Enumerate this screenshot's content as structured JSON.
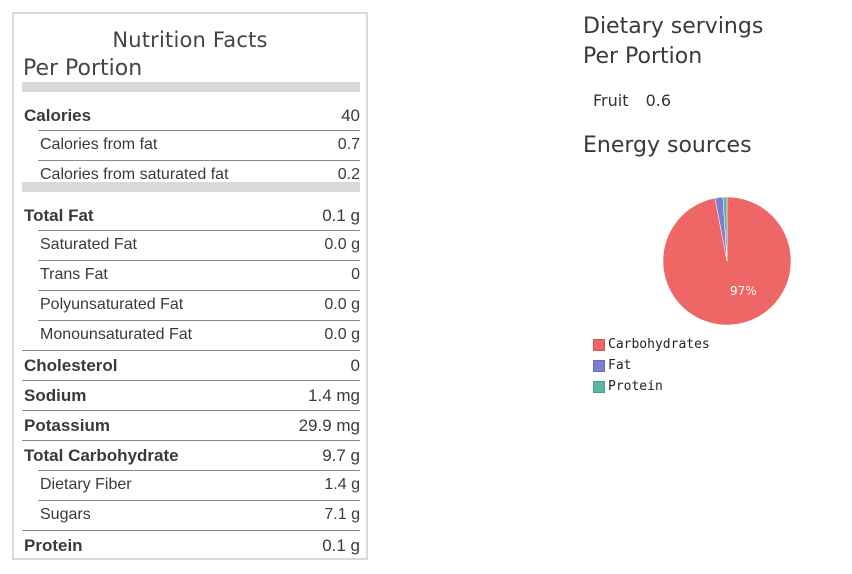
{
  "nutrition": {
    "title": "Nutrition Facts",
    "subtitle": "Per Portion",
    "rows": [
      {
        "label": "Calories",
        "value": "40",
        "type": "main"
      },
      {
        "label": "Calories from fat",
        "value": "0.7",
        "type": "sub"
      },
      {
        "label": "Calories from saturated fat",
        "value": "0.2",
        "type": "sub"
      },
      {
        "label": "Total Fat",
        "value": "0.1 g",
        "type": "main"
      },
      {
        "label": "Saturated Fat",
        "value": "0.0 g",
        "type": "sub"
      },
      {
        "label": "Trans Fat",
        "value": "0",
        "type": "sub"
      },
      {
        "label": "Polyunsaturated Fat",
        "value": "0.0 g",
        "type": "sub"
      },
      {
        "label": "Monounsaturated Fat",
        "value": "0.0 g",
        "type": "sub"
      },
      {
        "label": "Cholesterol",
        "value": "0",
        "type": "main"
      },
      {
        "label": "Sodium",
        "value": "1.4 mg",
        "type": "main"
      },
      {
        "label": "Potassium",
        "value": "29.9 mg",
        "type": "main"
      },
      {
        "label": "Total Carbohydrate",
        "value": "9.7 g",
        "type": "main"
      },
      {
        "label": "Dietary Fiber",
        "value": "1.4 g",
        "type": "sub"
      },
      {
        "label": "Sugars",
        "value": "7.1 g",
        "type": "sub"
      },
      {
        "label": "Protein",
        "value": "0.1 g",
        "type": "main"
      }
    ]
  },
  "dietary": {
    "heading_line1": "Dietary servings",
    "heading_line2": "Per Portion",
    "fruit_label": "Fruit",
    "fruit_value": "0.6"
  },
  "energy": {
    "heading": "Energy sources"
  },
  "chart_data": {
    "type": "pie",
    "title": "",
    "labels": [
      "Carbohydrates",
      "Fat",
      "Protein"
    ],
    "values": [
      97,
      2,
      1
    ],
    "colors": [
      "#ef6666",
      "#7b7fd0",
      "#5cb8a3"
    ],
    "slice_labels": [
      "97%",
      "",
      ""
    ],
    "legend_position": "bottom-left"
  }
}
